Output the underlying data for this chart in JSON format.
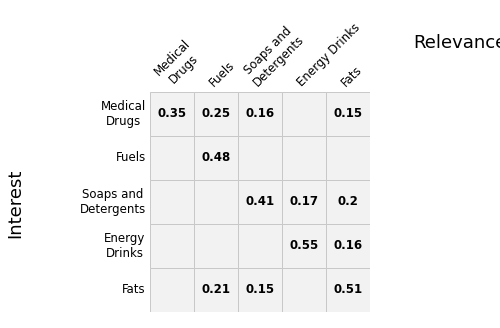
{
  "col_labels": [
    "Medical\nDrugs",
    "Fuels",
    "Soaps and\nDetergents",
    "Energy Drinks",
    "Fats"
  ],
  "row_labels": [
    "Medical\nDrugs",
    "Fuels",
    "Soaps and\nDetergents",
    "Energy\nDrinks",
    "Fats"
  ],
  "values": [
    [
      "0.35",
      "0.25",
      "0.16",
      "",
      "0.15"
    ],
    [
      "",
      "0.48",
      "",
      "",
      ""
    ],
    [
      "",
      "",
      "0.41",
      "0.17",
      "0.2"
    ],
    [
      "",
      "",
      "",
      "0.55",
      "0.16"
    ],
    [
      "",
      "0.21",
      "0.15",
      "",
      "0.51"
    ]
  ],
  "xlabel": "Relevance",
  "ylabel": "Interest",
  "grid_color": "#c8c8c8",
  "cell_bg": "#f2f2f2",
  "text_color": "#000000",
  "font_size_values": 8.5,
  "font_size_labels": 8.5,
  "font_size_axis_title": 13
}
